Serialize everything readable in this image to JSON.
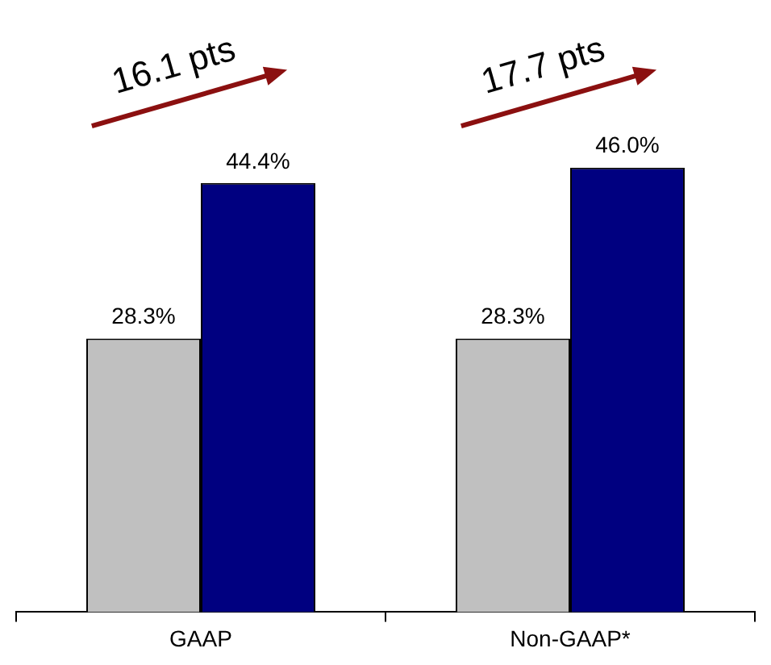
{
  "chart_data": {
    "type": "bar",
    "categories": [
      "GAAP",
      "Non-GAAP*"
    ],
    "series": [
      {
        "color": "#c0c0c0",
        "values": [
          28.3,
          28.3
        ],
        "value_labels": [
          "28.3%",
          "28.3%"
        ]
      },
      {
        "color": "#000080",
        "values": [
          44.4,
          46.0
        ],
        "value_labels": [
          "44.4%",
          "46.0%"
        ]
      }
    ],
    "legend": false,
    "grid": false,
    "annotations": [
      "16.1 pts",
      "17.7 pts"
    ]
  }
}
